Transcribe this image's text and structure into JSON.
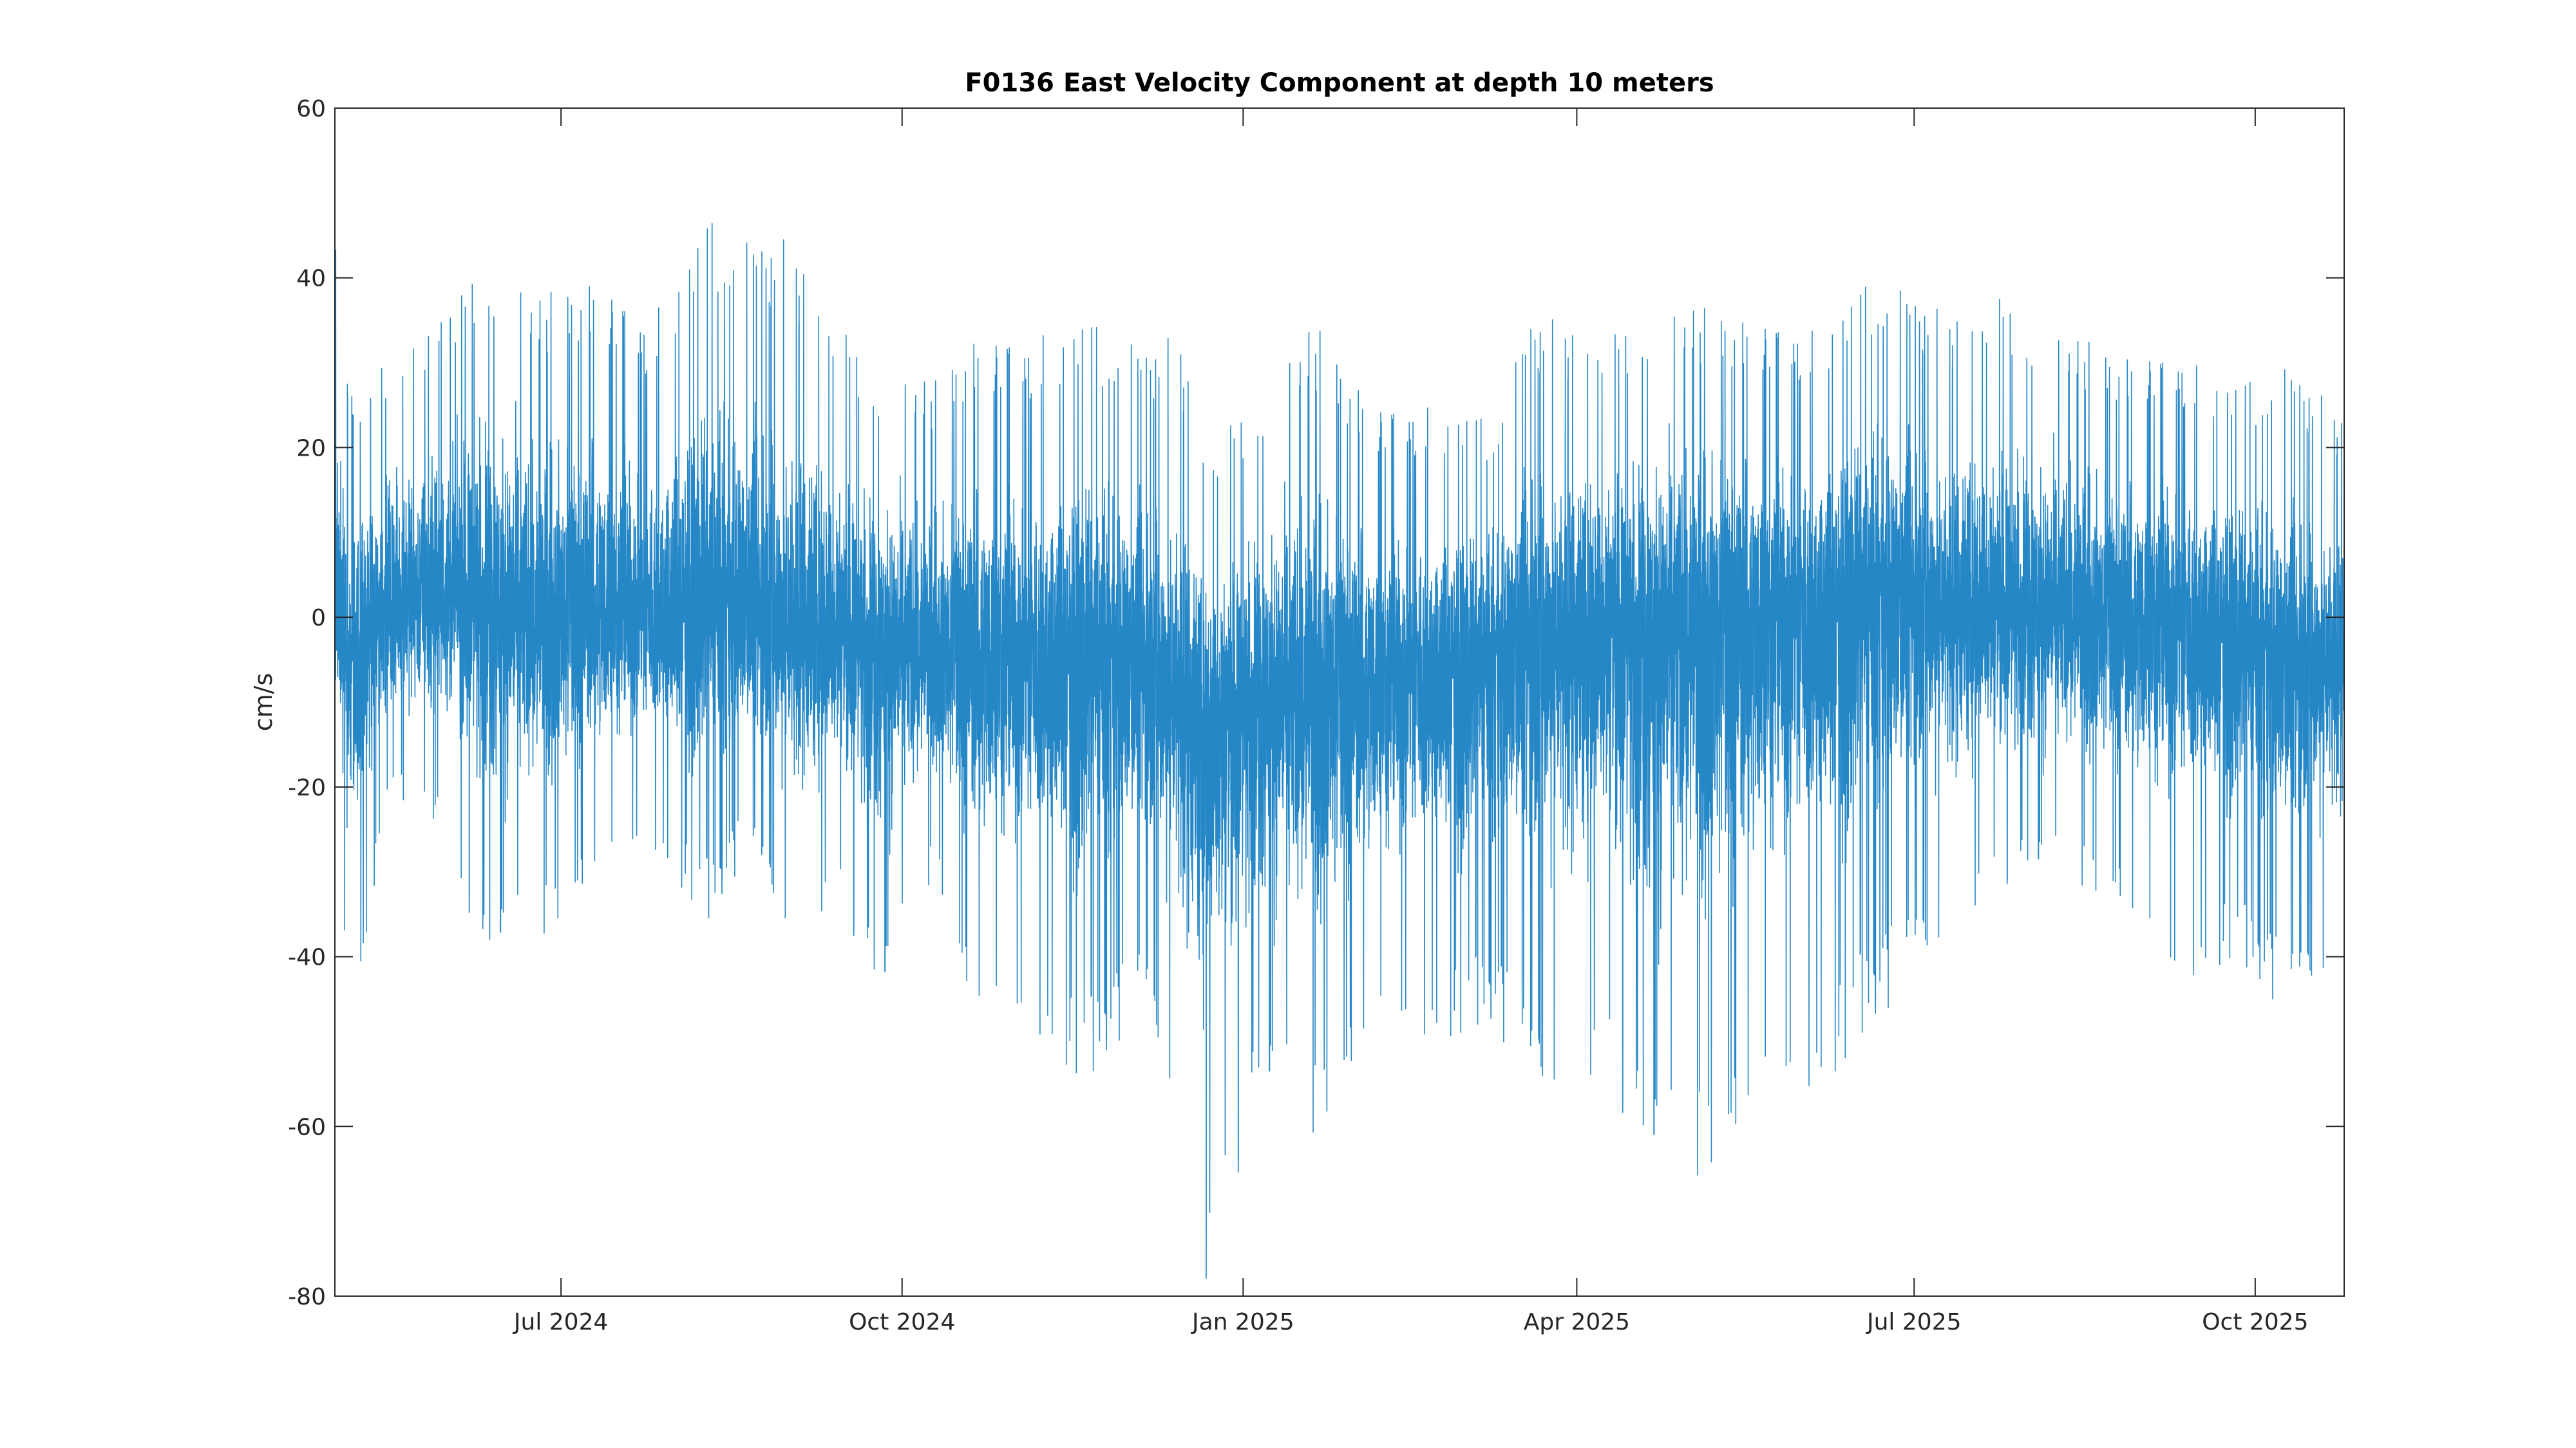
{
  "chart_data": {
    "type": "line",
    "title": "F0136 East Velocity Component at depth 10 meters",
    "xlabel": "",
    "ylabel": "cm/s",
    "x_range": [
      "2024-05-01",
      "2025-10-25"
    ],
    "ylim": [
      -80,
      60
    ],
    "y_ticks": [
      60,
      40,
      20,
      0,
      -20,
      -40,
      -60,
      -80
    ],
    "x_ticks": [
      {
        "date": "2024-07-01",
        "label": "Jul 2024"
      },
      {
        "date": "2024-10-01",
        "label": "Oct 2024"
      },
      {
        "date": "2025-01-01",
        "label": "Jan 2025"
      },
      {
        "date": "2025-04-01",
        "label": "Apr 2025"
      },
      {
        "date": "2025-07-01",
        "label": "Jul 2025"
      },
      {
        "date": "2025-10-01",
        "label": "Oct 2025"
      }
    ],
    "grid": false,
    "line_color": "#0072BD",
    "series": [
      {
        "name": "",
        "envelope": [
          {
            "date": "2024-05-01",
            "min": -20,
            "max": 48,
            "mean": 0
          },
          {
            "date": "2024-05-05",
            "min": -52,
            "max": 27,
            "mean": -5
          },
          {
            "date": "2024-05-15",
            "min": -22,
            "max": 30,
            "mean": 2
          },
          {
            "date": "2024-06-01",
            "min": -25,
            "max": 36,
            "mean": 3
          },
          {
            "date": "2024-06-10",
            "min": -43,
            "max": 45,
            "mean": 2
          },
          {
            "date": "2024-06-25",
            "min": -39,
            "max": 38,
            "mean": 0
          },
          {
            "date": "2024-07-10",
            "min": -30,
            "max": 40,
            "mean": 1
          },
          {
            "date": "2024-07-25",
            "min": -27,
            "max": 35,
            "mean": 0
          },
          {
            "date": "2024-08-10",
            "min": -36,
            "max": 48,
            "mean": 1
          },
          {
            "date": "2024-08-20",
            "min": -28,
            "max": 45,
            "mean": 0
          },
          {
            "date": "2024-09-01",
            "min": -38,
            "max": 45,
            "mean": -1
          },
          {
            "date": "2024-09-15",
            "min": -34,
            "max": 35,
            "mean": -2
          },
          {
            "date": "2024-09-25",
            "min": -48,
            "max": 30,
            "mean": -3
          },
          {
            "date": "2024-10-10",
            "min": -30,
            "max": 28,
            "mean": -4
          },
          {
            "date": "2024-10-20",
            "min": -46,
            "max": 33,
            "mean": -4
          },
          {
            "date": "2024-11-05",
            "min": -49,
            "max": 33,
            "mean": -5
          },
          {
            "date": "2024-11-20",
            "min": -55,
            "max": 36,
            "mean": -5
          },
          {
            "date": "2024-12-05",
            "min": -46,
            "max": 32,
            "mean": -6
          },
          {
            "date": "2024-12-15",
            "min": -60,
            "max": 34,
            "mean": -8
          },
          {
            "date": "2024-12-22",
            "min": -80,
            "max": 20,
            "mean": -12
          },
          {
            "date": "2025-01-05",
            "min": -58,
            "max": 28,
            "mean": -9
          },
          {
            "date": "2025-01-20",
            "min": -62,
            "max": 35,
            "mean": -8
          },
          {
            "date": "2025-02-05",
            "min": -48,
            "max": 25,
            "mean": -7
          },
          {
            "date": "2025-02-20",
            "min": -50,
            "max": 25,
            "mean": -6
          },
          {
            "date": "2025-03-10",
            "min": -48,
            "max": 24,
            "mean": -5
          },
          {
            "date": "2025-03-20",
            "min": -57,
            "max": 36,
            "mean": -2
          },
          {
            "date": "2025-04-10",
            "min": -55,
            "max": 34,
            "mean": 0
          },
          {
            "date": "2025-04-20",
            "min": -68,
            "max": 38,
            "mean": -1
          },
          {
            "date": "2025-05-01",
            "min": -69,
            "max": 37,
            "mean": 0
          },
          {
            "date": "2025-05-20",
            "min": -57,
            "max": 35,
            "mean": 1
          },
          {
            "date": "2025-06-05",
            "min": -56,
            "max": 34,
            "mean": 1
          },
          {
            "date": "2025-06-20",
            "min": -48,
            "max": 41,
            "mean": 2
          },
          {
            "date": "2025-07-10",
            "min": -38,
            "max": 36,
            "mean": 2
          },
          {
            "date": "2025-07-25",
            "min": -32,
            "max": 39,
            "mean": 1
          },
          {
            "date": "2025-08-10",
            "min": -32,
            "max": 34,
            "mean": 1
          },
          {
            "date": "2025-08-25",
            "min": -33,
            "max": 31,
            "mean": 0
          },
          {
            "date": "2025-09-10",
            "min": -44,
            "max": 31,
            "mean": 0
          },
          {
            "date": "2025-09-25",
            "min": -40,
            "max": 28,
            "mean": -2
          },
          {
            "date": "2025-10-10",
            "min": -47,
            "max": 30,
            "mean": -6
          },
          {
            "date": "2025-10-25",
            "min": -40,
            "max": 24,
            "mean": -4
          }
        ]
      }
    ]
  }
}
